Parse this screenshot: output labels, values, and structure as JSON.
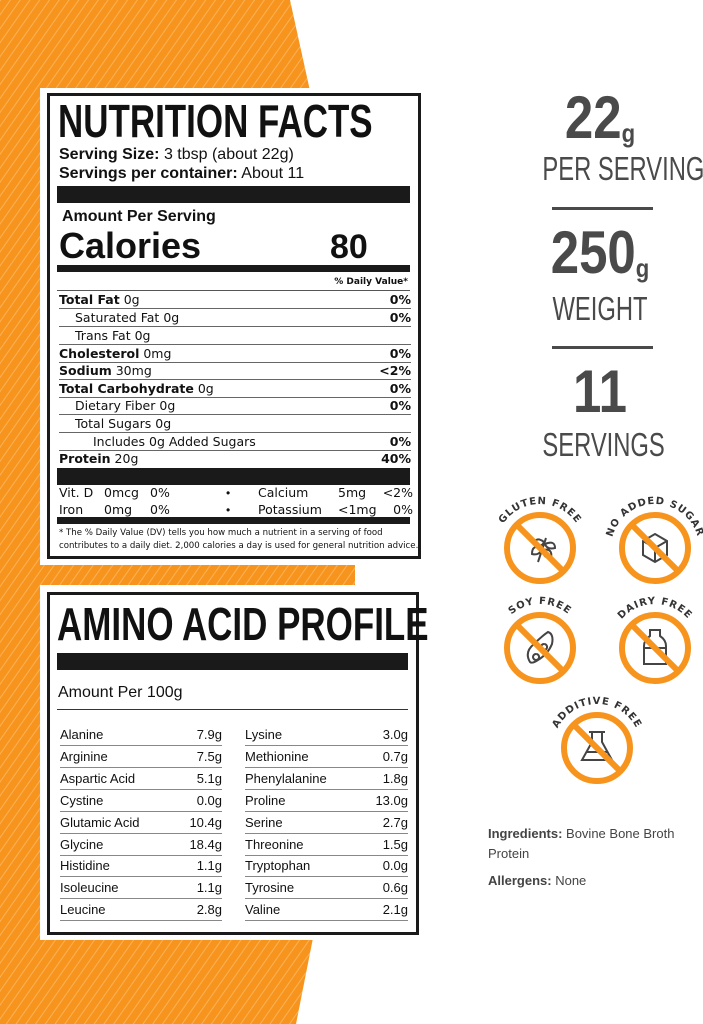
{
  "colors": {
    "accent": "#f7941d",
    "text_dark": "#4a4a4a",
    "label_black": "#1a1a1a"
  },
  "nutrition": {
    "title": "NUTRITION FACTS",
    "serving_size_label": "Serving Size:",
    "serving_size_value": "3 tbsp (about 22g)",
    "servings_label": "Servings per container:",
    "servings_value": "About 11",
    "amount_per_serving": "Amount Per Serving",
    "calories_label": "Calories",
    "calories_value": "80",
    "dv_header": "% Daily Value*",
    "rows": [
      {
        "name": "Total Fat",
        "amount": "0g",
        "dv": "0%",
        "bold": true
      },
      {
        "name": "Saturated Fat",
        "amount": "0g",
        "dv": "0%",
        "indent": 1
      },
      {
        "name": "Trans Fat",
        "amount": "0g",
        "dv": "",
        "indent": 1
      },
      {
        "name": "Cholesterol",
        "amount": "0mg",
        "dv": "0%",
        "bold": true
      },
      {
        "name": "Sodium",
        "amount": "30mg",
        "dv": "<2%",
        "bold": true
      },
      {
        "name": "Total Carbohydrate",
        "amount": "0g",
        "dv": "0%",
        "bold": true
      },
      {
        "name": "Dietary Fiber",
        "amount": "0g",
        "dv": "0%",
        "indent": 1
      },
      {
        "name": "Total Sugars",
        "amount": "0g",
        "dv": "",
        "indent": 1
      },
      {
        "name": "Includes 0g Added Sugars",
        "amount": "",
        "dv": "0%",
        "indent": 2
      },
      {
        "name": "Protein",
        "amount": "20g",
        "dv": "40%",
        "bold": true
      }
    ],
    "micros": [
      {
        "name": "Vit. D",
        "amount": "0mcg",
        "dv": "0%",
        "name2": "Calcium",
        "amount2": "5mg",
        "dv2": "<2%"
      },
      {
        "name": "Iron",
        "amount": "0mg",
        "dv": "0%",
        "name2": "Potassium",
        "amount2": "<1mg",
        "dv2": "0%"
      }
    ],
    "bullet": "•",
    "footnote_1": "* The % Daily Value (DV) tells you how much a nutrient in a serving of food",
    "footnote_2": "contributes to a daily diet. 2,000 calories a day is used for general nutrition advice."
  },
  "amino": {
    "title": "AMINO ACID PROFILE",
    "amount_label": "Amount Per 100g",
    "left": [
      [
        "Alanine",
        "7.9g"
      ],
      [
        "Arginine",
        "7.5g"
      ],
      [
        "Aspartic Acid",
        "5.1g"
      ],
      [
        "Cystine",
        "0.0g"
      ],
      [
        "Glutamic Acid",
        "10.4g"
      ],
      [
        "Glycine",
        "18.4g"
      ],
      [
        "Histidine",
        "1.1g"
      ],
      [
        "Isoleucine",
        "1.1g"
      ],
      [
        "Leucine",
        "2.8g"
      ]
    ],
    "right": [
      [
        "Lysine",
        "3.0g"
      ],
      [
        "Methionine",
        "0.7g"
      ],
      [
        "Phenylalanine",
        "1.8g"
      ],
      [
        "Proline",
        "13.0g"
      ],
      [
        "Serine",
        "2.7g"
      ],
      [
        "Threonine",
        "1.5g"
      ],
      [
        "Tryptophan",
        "0.0g"
      ],
      [
        "Tyrosine",
        "0.6g"
      ],
      [
        "Valine",
        "2.1g"
      ]
    ]
  },
  "stats": [
    {
      "value": "22",
      "unit": "g",
      "label": "PER SERVING"
    },
    {
      "value": "250",
      "unit": "g",
      "label": "WEIGHT"
    },
    {
      "value": "11",
      "unit": "",
      "label": "SERVINGS"
    }
  ],
  "badges": [
    {
      "label": "GLUTEN FREE",
      "icon": "wheat-icon"
    },
    {
      "label": "NO ADDED SUGAR",
      "icon": "sugar-cube-icon"
    },
    {
      "label": "SOY FREE",
      "icon": "soybean-icon"
    },
    {
      "label": "DAIRY FREE",
      "icon": "milk-bottle-icon"
    },
    {
      "label": "ADDITIVE FREE",
      "icon": "flask-icon"
    }
  ],
  "ingredients": {
    "label": "Ingredients:",
    "value_1": "Bovine Bone Broth",
    "value_2": "Protein"
  },
  "allergens": {
    "label": "Allergens:",
    "value": "None"
  }
}
